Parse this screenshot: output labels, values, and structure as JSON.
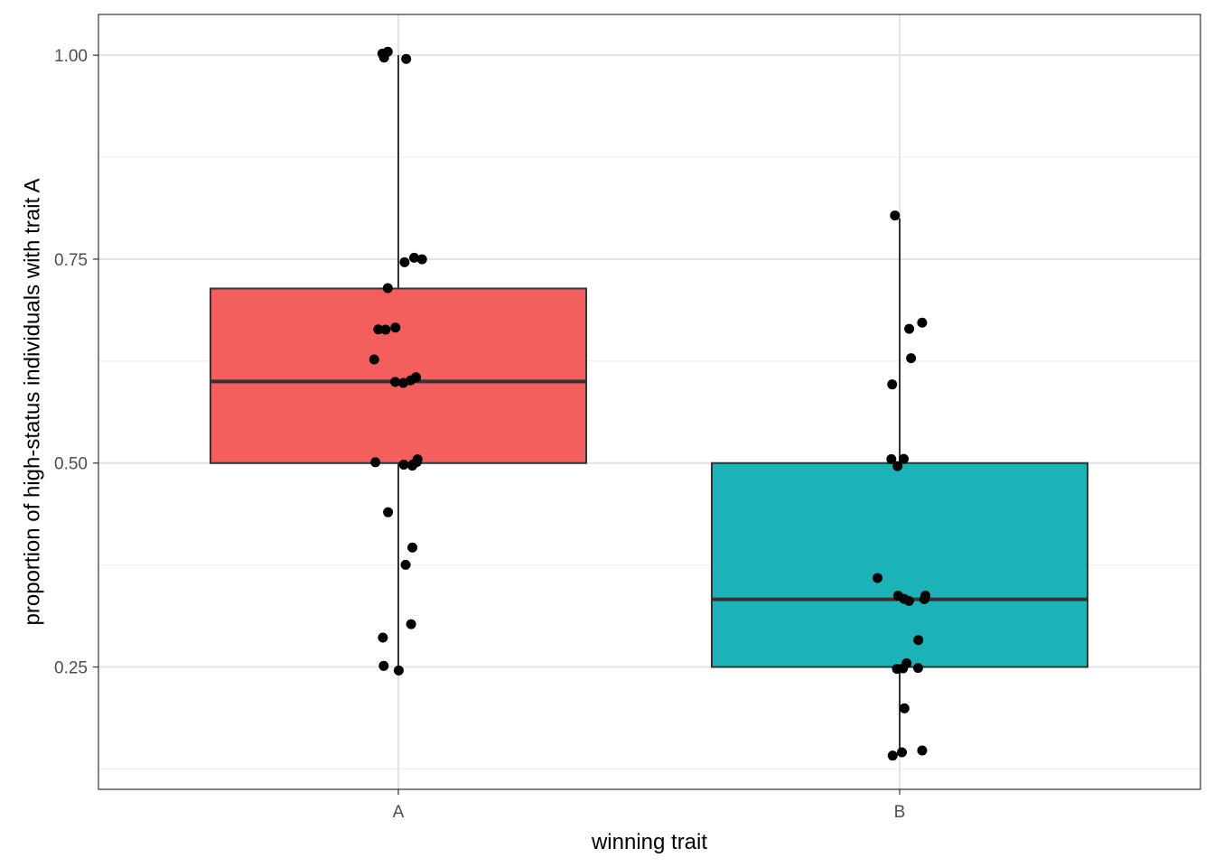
{
  "chart_data": {
    "type": "box",
    "title": "",
    "xlabel": "winning trait",
    "ylabel": "proportion of high-status individuals with trait A",
    "categories": [
      "A",
      "B"
    ],
    "ylim": [
      0.1,
      1.05
    ],
    "y_ticks": [
      0.25,
      0.5,
      0.75,
      1.0
    ],
    "y_tick_labels": [
      "0.25",
      "0.50",
      "0.75",
      "1.00"
    ],
    "y_minor_gridlines": [
      0.125,
      0.375,
      0.625,
      0.875
    ],
    "grid": true,
    "legend": "none",
    "panel_border": true,
    "series": [
      {
        "category": "A",
        "fill": "#F25F5C",
        "box": {
          "q1": 0.5,
          "median": 0.6,
          "q3": 0.714,
          "whisker_low": 0.25,
          "whisker_high": 1.0
        },
        "points": [
          1.0,
          1.0,
          1.0,
          1.0,
          0.75,
          0.75,
          0.75,
          0.714,
          0.667,
          0.667,
          0.667,
          0.625,
          0.6,
          0.6,
          0.6,
          0.6,
          0.5,
          0.5,
          0.5,
          0.5,
          0.5,
          0.5,
          0.444,
          0.4,
          0.375,
          0.3,
          0.286,
          0.25,
          0.25
        ]
      },
      {
        "category": "B",
        "fill": "#1BB3B8",
        "box": {
          "q1": 0.25,
          "median": 0.333,
          "q3": 0.5,
          "whisker_low": 0.143,
          "whisker_high": 0.8
        },
        "points": [
          0.8,
          0.667,
          0.667,
          0.625,
          0.6,
          0.5,
          0.5,
          0.5,
          0.357,
          0.333,
          0.333,
          0.333,
          0.333,
          0.333,
          0.286,
          0.25,
          0.25,
          0.25,
          0.25,
          0.2,
          0.143,
          0.143,
          0.143
        ]
      }
    ]
  }
}
